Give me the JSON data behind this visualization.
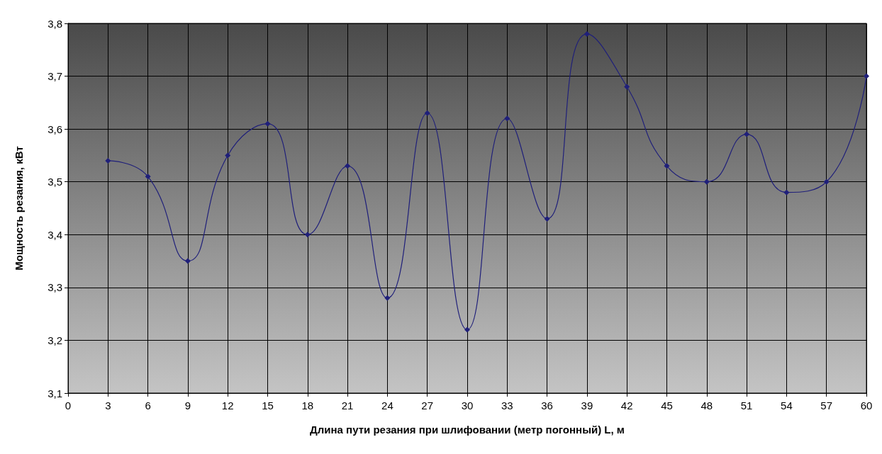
{
  "chart_data": {
    "type": "line",
    "xlabel": "Длина пути резания при шлифовании (метр погонный) L, м",
    "ylabel": "Мощность резания, кВт",
    "x": [
      3,
      6,
      9,
      12,
      15,
      18,
      21,
      24,
      27,
      30,
      33,
      36,
      39,
      42,
      45,
      48,
      51,
      54,
      57,
      60
    ],
    "series": [
      {
        "color": "#1f1f7a",
        "values": [
          3.54,
          3.51,
          3.35,
          3.55,
          3.61,
          3.4,
          3.53,
          3.28,
          3.63,
          3.22,
          3.62,
          3.43,
          3.78,
          3.68,
          3.53,
          3.5,
          3.59,
          3.48,
          3.5,
          3.7
        ]
      }
    ],
    "xlim": [
      0,
      60
    ],
    "xticks": [
      0,
      3,
      6,
      9,
      12,
      15,
      18,
      21,
      24,
      27,
      30,
      33,
      36,
      39,
      42,
      45,
      48,
      51,
      54,
      57,
      60
    ],
    "ylim": [
      3.1,
      3.8
    ],
    "yticks": [
      {
        "value": 3.1,
        "label": "3,1"
      },
      {
        "value": 3.2,
        "label": "3,2"
      },
      {
        "value": 3.3,
        "label": "3,3"
      },
      {
        "value": 3.4,
        "label": "3,4"
      },
      {
        "value": 3.5,
        "label": "3,5"
      },
      {
        "value": 3.6,
        "label": "3,6"
      },
      {
        "value": 3.7,
        "label": "3,7"
      },
      {
        "value": 3.8,
        "label": "3,8"
      }
    ],
    "grid": true,
    "marker": "diamond",
    "line_style": "solid"
  }
}
